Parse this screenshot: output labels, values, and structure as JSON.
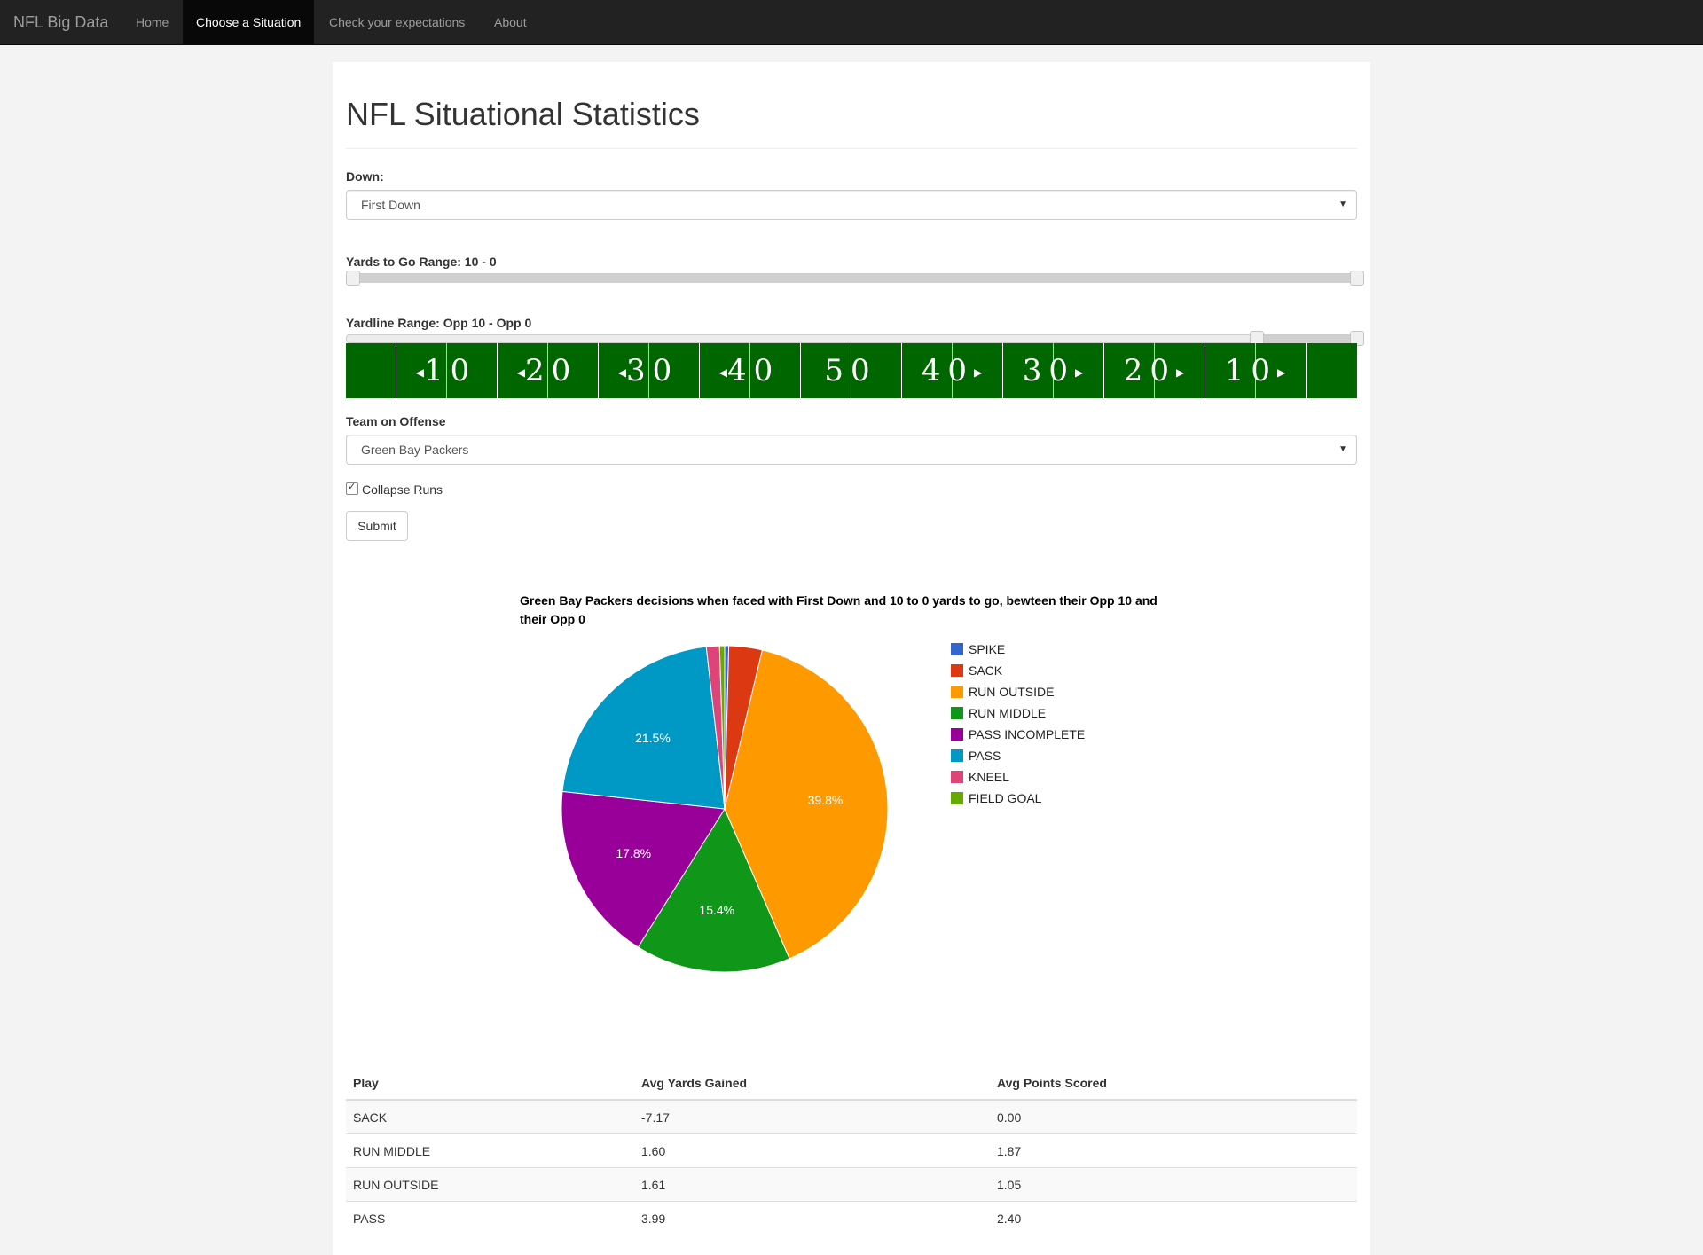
{
  "navbar": {
    "brand": "NFL Big Data",
    "items": [
      {
        "label": "Home",
        "active": false
      },
      {
        "label": "Choose a Situation",
        "active": true
      },
      {
        "label": "Check your expectations",
        "active": false
      },
      {
        "label": "About",
        "active": false
      }
    ]
  },
  "page": {
    "title": "NFL Situational Statistics"
  },
  "form": {
    "down_label": "Down:",
    "down_value": "First Down",
    "yards_label": "Yards to Go Range: 10 - 0",
    "yards_range": {
      "min": 0,
      "max": 10,
      "low": 0,
      "high": 10
    },
    "yardline_label": "Yardline Range: Opp 10 - Opp 0",
    "yardline_range": {
      "min": 0,
      "max": 100,
      "low": 90,
      "high": 100
    },
    "field_numbers": [
      "10",
      "20",
      "30",
      "40",
      "50",
      "40",
      "30",
      "20",
      "10"
    ],
    "team_label": "Team on Offense",
    "team_value": "Green Bay Packers",
    "collapse_label": "Collapse Runs",
    "collapse_checked": true,
    "submit_label": "Submit"
  },
  "chart_data": {
    "type": "pie",
    "title": "Green Bay Packers decisions when faced with First Down and 10 to 0 yards to go, bewteen their Opp 10 and their Opp 0",
    "slices": [
      {
        "name": "SPIKE",
        "value": 0.4,
        "color": "#3366cc"
      },
      {
        "name": "SACK",
        "value": 3.3,
        "color": "#dc3912"
      },
      {
        "name": "RUN OUTSIDE",
        "value": 39.8,
        "color": "#ff9900",
        "label": "39.8%"
      },
      {
        "name": "RUN MIDDLE",
        "value": 15.4,
        "color": "#109618",
        "label": "15.4%"
      },
      {
        "name": "PASS INCOMPLETE",
        "value": 17.8,
        "color": "#990099",
        "label": "17.8%"
      },
      {
        "name": "PASS",
        "value": 21.5,
        "color": "#0099c6",
        "label": "21.5%"
      },
      {
        "name": "KNEEL",
        "value": 1.3,
        "color": "#dd4477"
      },
      {
        "name": "FIELD GOAL",
        "value": 0.5,
        "color": "#66aa00"
      }
    ],
    "legend_position": "right"
  },
  "table": {
    "headers": [
      "Play",
      "Avg Yards Gained",
      "Avg Points Scored"
    ],
    "rows": [
      [
        "SACK",
        "-7.17",
        "0.00"
      ],
      [
        "RUN MIDDLE",
        "1.60",
        "1.87"
      ],
      [
        "RUN OUTSIDE",
        "1.61",
        "1.05"
      ],
      [
        "PASS",
        "3.99",
        "2.40"
      ]
    ]
  }
}
